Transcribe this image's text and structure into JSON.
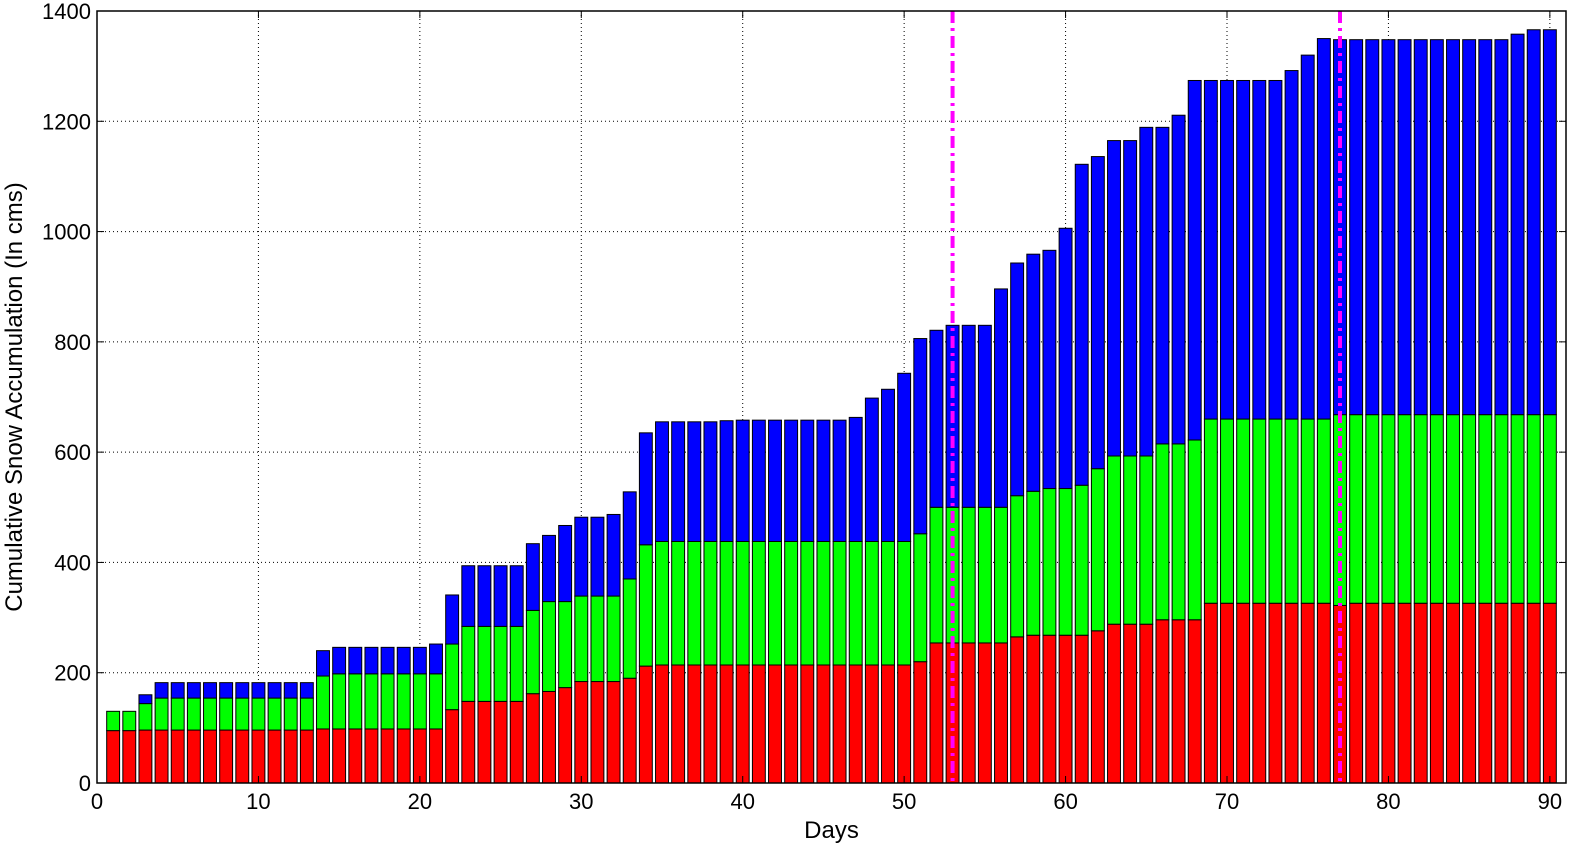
{
  "chart_data": {
    "type": "bar",
    "stacked": true,
    "title": "",
    "xlabel": "Days",
    "ylabel": "Cumulative Snow Accumulation (In cms)",
    "xlim": [
      0,
      91
    ],
    "ylim": [
      0,
      1400
    ],
    "xticks": [
      "0",
      "10",
      "20",
      "30",
      "40",
      "50",
      "60",
      "70",
      "80",
      "90"
    ],
    "yticks": [
      "0",
      "200",
      "400",
      "600",
      "800",
      "1000",
      "1200",
      "1400"
    ],
    "grid": true,
    "legend": "none",
    "x": [
      1,
      2,
      3,
      4,
      5,
      6,
      7,
      8,
      9,
      10,
      11,
      12,
      13,
      14,
      15,
      16,
      17,
      18,
      19,
      20,
      21,
      22,
      23,
      24,
      25,
      26,
      27,
      28,
      29,
      30,
      31,
      32,
      33,
      34,
      35,
      36,
      37,
      38,
      39,
      40,
      41,
      42,
      43,
      44,
      45,
      46,
      47,
      48,
      49,
      50,
      51,
      52,
      53,
      54,
      55,
      56,
      57,
      58,
      59,
      60,
      61,
      62,
      63,
      64,
      65,
      66,
      67,
      68,
      69,
      70,
      71,
      72,
      73,
      74,
      75,
      76,
      77,
      78,
      79,
      80,
      81,
      82,
      83,
      84,
      85,
      86,
      87,
      88,
      89,
      90
    ],
    "colors": [
      "#ff0000",
      "#00ff00",
      "#0000ff"
    ],
    "series": [
      {
        "values": [
          95,
          95,
          96,
          96,
          96,
          96,
          96,
          96,
          96,
          96,
          96,
          96,
          96,
          98,
          98,
          98,
          98,
          98,
          98,
          98,
          98,
          133,
          148,
          148,
          148,
          148,
          162,
          166,
          173,
          184,
          184,
          184,
          190,
          212,
          214,
          214,
          214,
          214,
          214,
          214,
          214,
          214,
          214,
          214,
          214,
          214,
          214,
          214,
          214,
          214,
          220,
          254,
          254,
          254,
          254,
          254,
          265,
          268,
          268,
          268,
          268,
          276,
          288,
          288,
          288,
          296,
          296,
          296,
          326,
          326,
          326,
          326,
          326,
          326,
          326,
          326,
          322,
          326,
          326,
          326,
          326,
          326,
          326,
          326,
          326,
          326,
          326,
          326,
          326,
          326
        ]
      },
      {
        "values": [
          35,
          35,
          48,
          58,
          58,
          58,
          58,
          58,
          58,
          58,
          58,
          58,
          58,
          96,
          100,
          100,
          100,
          100,
          100,
          100,
          100,
          119,
          136,
          136,
          136,
          136,
          151,
          163,
          156,
          155,
          155,
          155,
          180,
          220,
          224,
          224,
          224,
          224,
          224,
          224,
          224,
          224,
          224,
          224,
          224,
          224,
          224,
          224,
          224,
          224,
          232,
          246,
          246,
          246,
          246,
          246,
          256,
          261,
          266,
          266,
          272,
          294,
          305,
          305,
          305,
          319,
          319,
          326,
          334,
          334,
          334,
          334,
          334,
          334,
          334,
          334,
          346,
          342,
          342,
          342,
          342,
          342,
          342,
          342,
          342,
          342,
          342,
          342,
          342,
          342
        ]
      },
      {
        "values": [
          0,
          0,
          16,
          28,
          28,
          28,
          28,
          28,
          28,
          28,
          28,
          28,
          28,
          46,
          48,
          48,
          48,
          48,
          48,
          48,
          54,
          89,
          110,
          110,
          110,
          110,
          121,
          120,
          138,
          143,
          143,
          148,
          158,
          203,
          217,
          217,
          217,
          217,
          219,
          220,
          220,
          220,
          220,
          220,
          220,
          220,
          225,
          260,
          276,
          305,
          354,
          321,
          330,
          330,
          330,
          396,
          422,
          430,
          432,
          472,
          582,
          566,
          572,
          572,
          596,
          574,
          596,
          652,
          614,
          614,
          614,
          614,
          614,
          632,
          660,
          690,
          680,
          680,
          680,
          680,
          680,
          680,
          680,
          680,
          680,
          680,
          680,
          690,
          698,
          698
        ]
      }
    ],
    "reference_lines": [
      {
        "x": 53,
        "color": "#ff00ff",
        "style": "dash-dot"
      },
      {
        "x": 77,
        "color": "#ff00ff",
        "style": "dash-dot"
      }
    ]
  }
}
